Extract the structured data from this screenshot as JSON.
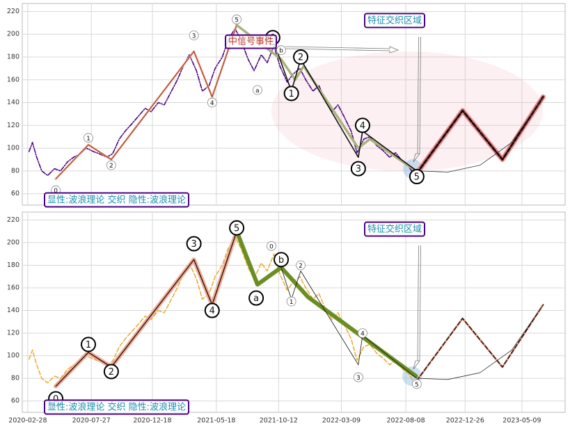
{
  "chart_data": [
    {
      "type": "line",
      "xlim": [
        "2020-02-15",
        "2023-08-19"
      ],
      "ylim": [
        50,
        227
      ],
      "yticks": [
        60,
        80,
        100,
        120,
        140,
        160,
        180,
        200,
        220
      ],
      "grid": true,
      "annotations": [
        "显性:波浪理论 交织 隐性:波浪理论",
        "特征交织区域",
        "中信号事件"
      ],
      "series": [
        {
          "color": "#4b0082",
          "style": "dashdot",
          "width": 1.6,
          "x": [
            "2020-03-02",
            "2020-03-10",
            "2020-03-20",
            "2020-04-01",
            "2020-04-15",
            "2020-05-01",
            "2020-05-15",
            "2020-06-01",
            "2020-06-15",
            "2020-07-01",
            "2020-07-15",
            "2020-08-01",
            "2020-08-15",
            "2020-09-01",
            "2020-09-15",
            "2020-10-01",
            "2020-10-15",
            "2020-11-01",
            "2020-11-15",
            "2020-12-01",
            "2020-12-15",
            "2021-01-01",
            "2021-01-15",
            "2021-02-01",
            "2021-02-15",
            "2021-03-01",
            "2021-03-15",
            "2021-04-01",
            "2021-04-15",
            "2021-05-01",
            "2021-05-15",
            "2021-06-01",
            "2021-06-15",
            "2021-07-01",
            "2021-07-15",
            "2021-08-01",
            "2021-08-15",
            "2021-09-01",
            "2021-09-15",
            "2021-10-01",
            "2021-10-15",
            "2021-11-01",
            "2021-11-15",
            "2021-12-01",
            "2021-12-15",
            "2022-01-01",
            "2022-01-15",
            "2022-02-01",
            "2022-02-15",
            "2022-03-01",
            "2022-03-15",
            "2022-04-01",
            "2022-04-15",
            "2022-05-01",
            "2022-05-15",
            "2022-06-01",
            "2022-06-15",
            "2022-07-01",
            "2022-07-15",
            "2022-08-01",
            "2022-08-15",
            "2022-08-25"
          ],
          "values": [
            97,
            105,
            92,
            80,
            76,
            82,
            80,
            88,
            92,
            95,
            100,
            97,
            95,
            92,
            95,
            108,
            115,
            122,
            128,
            135,
            132,
            140,
            138,
            150,
            160,
            172,
            182,
            168,
            150,
            155,
            170,
            180,
            195,
            205,
            195,
            178,
            168,
            182,
            175,
            190,
            172,
            158,
            165,
            170,
            160,
            150,
            155,
            140,
            132,
            138,
            128,
            115,
            96,
            108,
            110,
            102,
            98,
            92,
            96,
            88,
            84,
            78
          ]
        },
        {
          "color": "#f4b6a0",
          "style": "solid",
          "width": 3,
          "x": [
            "2020-05-04",
            "2020-07-20",
            "2020-09-12",
            "2021-03-26",
            "2021-05-08",
            "2021-07-05"
          ],
          "values": [
            73,
            103,
            90,
            185,
            145,
            208
          ]
        },
        {
          "color": "#8b2a10",
          "style": "solid",
          "width": 1,
          "x": [
            "2020-05-04",
            "2020-07-20",
            "2020-09-12",
            "2021-03-26",
            "2021-05-08",
            "2021-07-05"
          ],
          "values": [
            73,
            103,
            90,
            185,
            145,
            208
          ]
        },
        {
          "color": "#a9b27a",
          "style": "solid",
          "width": 3.5,
          "x": [
            "2021-07-05",
            "2021-10-18",
            "2021-11-20",
            "2021-12-10",
            "2022-04-18",
            "2022-05-15",
            "2022-09-01"
          ],
          "values": [
            208,
            178,
            160,
            172,
            100,
            108,
            80
          ]
        },
        {
          "color": "#111111",
          "style": "solid",
          "width": 1.6,
          "x": [
            "2021-09-28",
            "2021-11-11",
            "2021-12-03",
            "2022-04-18",
            "2022-04-28",
            "2022-09-03"
          ],
          "values": [
            196,
            150,
            178,
            92,
            115,
            80
          ]
        },
        {
          "color": "#f08080",
          "style": "solid",
          "width": 7,
          "x": [
            "2022-09-03",
            "2022-12-20",
            "2023-03-24",
            "2023-06-28"
          ],
          "values": [
            78,
            133,
            90,
            145
          ]
        },
        {
          "color": "#111111",
          "style": "dashed",
          "width": 3,
          "x": [
            "2022-09-03",
            "2022-12-20",
            "2023-03-24",
            "2023-06-28"
          ],
          "values": [
            78,
            133,
            90,
            145
          ]
        },
        {
          "color": "#333333",
          "style": "solid",
          "width": 0.8,
          "x": [
            "2022-09-10",
            "2022-11-15",
            "2023-01-30",
            "2023-04-15",
            "2023-06-28"
          ],
          "values": [
            80,
            79,
            85,
            105,
            145
          ]
        }
      ],
      "wave_labels": [
        {
          "text": "0",
          "x": "2020-05-04",
          "y": 63,
          "size": "small"
        },
        {
          "text": "1",
          "x": "2020-07-20",
          "y": 109,
          "size": "small"
        },
        {
          "text": "2",
          "x": "2020-09-12",
          "y": 85,
          "size": "small"
        },
        {
          "text": "3",
          "x": "2021-03-26",
          "y": 199,
          "size": "small"
        },
        {
          "text": "4",
          "x": "2021-05-08",
          "y": 140,
          "size": "small"
        },
        {
          "text": "5",
          "x": "2021-07-05",
          "y": 213,
          "size": "small"
        },
        {
          "text": "a",
          "x": "2021-08-23",
          "y": 151,
          "size": "small"
        },
        {
          "text": "b",
          "x": "2021-10-18",
          "y": 186,
          "size": "small"
        },
        {
          "text": "0",
          "x": "2021-09-28",
          "y": 197,
          "size": "large"
        },
        {
          "text": "1",
          "x": "2021-11-11",
          "y": 148,
          "size": "large"
        },
        {
          "text": "2",
          "x": "2021-12-03",
          "y": 180,
          "size": "large"
        },
        {
          "text": "3",
          "x": "2022-04-18",
          "y": 82,
          "size": "large"
        },
        {
          "text": "4",
          "x": "2022-04-28",
          "y": 120,
          "size": "large"
        },
        {
          "text": "5",
          "x": "2022-09-03",
          "y": 75,
          "size": "large"
        }
      ]
    },
    {
      "type": "line",
      "xlim": [
        "2020-02-15",
        "2023-08-19"
      ],
      "ylim": [
        50,
        227
      ],
      "yticks": [
        60,
        80,
        100,
        120,
        140,
        160,
        180,
        200,
        220
      ],
      "grid": true,
      "xticks": [
        "2020-02-28",
        "2020-07-27",
        "2020-12-18",
        "2021-05-18",
        "2021-10-12",
        "2022-03-09",
        "2022-08-08",
        "2022-12-26",
        "2023-05-09"
      ],
      "annotations": [
        "显性:波浪理论 交织 隐性:波浪理论",
        "特征交织区域"
      ],
      "series": [
        {
          "color": "#e8a830",
          "style": "dashed",
          "width": 1.5,
          "x": [
            "2020-03-02",
            "2020-03-10",
            "2020-03-20",
            "2020-04-01",
            "2020-04-15",
            "2020-05-01",
            "2020-05-15",
            "2020-06-01",
            "2020-06-15",
            "2020-07-01",
            "2020-07-15",
            "2020-08-01",
            "2020-08-15",
            "2020-09-01",
            "2020-09-15",
            "2020-10-01",
            "2020-10-15",
            "2020-11-01",
            "2020-11-15",
            "2020-12-01",
            "2020-12-15",
            "2021-01-01",
            "2021-01-15",
            "2021-02-01",
            "2021-02-15",
            "2021-03-01",
            "2021-03-15",
            "2021-04-01",
            "2021-04-15",
            "2021-05-01",
            "2021-05-15",
            "2021-06-01",
            "2021-06-15",
            "2021-07-01",
            "2021-07-15",
            "2021-08-01",
            "2021-08-15",
            "2021-09-01",
            "2021-09-15",
            "2021-10-01",
            "2021-10-15",
            "2021-11-01",
            "2021-11-15",
            "2021-12-01",
            "2021-12-15",
            "2022-01-01",
            "2022-01-15",
            "2022-02-01",
            "2022-02-15",
            "2022-03-01",
            "2022-03-15",
            "2022-04-01",
            "2022-04-15",
            "2022-05-01",
            "2022-05-15",
            "2022-06-01",
            "2022-06-15",
            "2022-07-01",
            "2022-07-15",
            "2022-08-01",
            "2022-08-15",
            "2022-08-25"
          ],
          "values": [
            97,
            105,
            92,
            80,
            76,
            82,
            80,
            88,
            92,
            95,
            100,
            97,
            95,
            92,
            95,
            108,
            115,
            122,
            128,
            135,
            132,
            140,
            138,
            150,
            160,
            172,
            182,
            168,
            150,
            155,
            170,
            180,
            195,
            205,
            195,
            178,
            168,
            182,
            175,
            190,
            172,
            158,
            165,
            170,
            160,
            150,
            155,
            140,
            132,
            138,
            128,
            115,
            96,
            108,
            110,
            102,
            98,
            92,
            96,
            88,
            84,
            78
          ]
        },
        {
          "color": "#f4a890",
          "style": "solid",
          "width": 6,
          "x": [
            "2020-05-04",
            "2020-07-20",
            "2020-09-12",
            "2021-03-26",
            "2021-05-08",
            "2021-07-05"
          ],
          "values": [
            73,
            103,
            90,
            185,
            145,
            210
          ]
        },
        {
          "color": "#111111",
          "style": "solid",
          "width": 1.3,
          "x": [
            "2020-05-04",
            "2020-07-20",
            "2020-09-12",
            "2021-03-26",
            "2021-05-08",
            "2021-07-05"
          ],
          "values": [
            73,
            103,
            90,
            185,
            145,
            210
          ]
        },
        {
          "color": "#6b8e23",
          "style": "solid",
          "width": 6,
          "x": [
            "2021-07-05",
            "2021-08-23",
            "2021-10-18",
            "2021-12-20",
            "2022-09-01"
          ],
          "values": [
            210,
            163,
            178,
            152,
            82
          ]
        },
        {
          "color": "#111111",
          "style": "solid",
          "width": 0.8,
          "x": [
            "2021-10-18",
            "2021-11-11",
            "2021-12-03",
            "2022-04-18",
            "2022-04-28",
            "2022-09-03"
          ],
          "values": [
            178,
            150,
            175,
            92,
            118,
            80
          ]
        },
        {
          "color": "#f4a890",
          "style": "solid",
          "width": 3,
          "x": [
            "2022-09-03",
            "2022-12-20",
            "2023-03-24",
            "2023-06-28"
          ],
          "values": [
            78,
            133,
            90,
            145
          ]
        },
        {
          "color": "#111111",
          "style": "dashed",
          "width": 1.5,
          "x": [
            "2022-09-03",
            "2022-12-20",
            "2023-03-24",
            "2023-06-28"
          ],
          "values": [
            78,
            133,
            90,
            145
          ]
        },
        {
          "color": "#333333",
          "style": "solid",
          "width": 0.8,
          "x": [
            "2022-09-10",
            "2022-11-15",
            "2023-01-30",
            "2023-04-15",
            "2023-06-28"
          ],
          "values": [
            80,
            79,
            85,
            105,
            145
          ]
        }
      ],
      "wave_labels": [
        {
          "text": "0",
          "x": "2021-09-25",
          "y": 197,
          "size": "small"
        },
        {
          "text": "2",
          "x": "2021-12-03",
          "y": 180,
          "size": "small"
        },
        {
          "text": "1",
          "x": "2021-11-11",
          "y": 148,
          "size": "small"
        },
        {
          "text": "4",
          "x": "2022-04-28",
          "y": 120,
          "size": "small"
        },
        {
          "text": "3",
          "x": "2022-04-18",
          "y": 81,
          "size": "small"
        },
        {
          "text": "5",
          "x": "2022-09-03",
          "y": 75,
          "size": "small"
        },
        {
          "text": "0",
          "x": "2020-05-04",
          "y": 62,
          "size": "large"
        },
        {
          "text": "1",
          "x": "2020-07-20",
          "y": 110,
          "size": "large"
        },
        {
          "text": "2",
          "x": "2020-09-12",
          "y": 86,
          "size": "large"
        },
        {
          "text": "3",
          "x": "2021-03-26",
          "y": 199,
          "size": "large"
        },
        {
          "text": "4",
          "x": "2021-05-08",
          "y": 140,
          "size": "large"
        },
        {
          "text": "5",
          "x": "2021-07-05",
          "y": 213,
          "size": "large"
        },
        {
          "text": "a",
          "x": "2021-08-20",
          "y": 151,
          "size": "large"
        },
        {
          "text": "b",
          "x": "2021-10-18",
          "y": 185,
          "size": "large"
        }
      ]
    }
  ]
}
